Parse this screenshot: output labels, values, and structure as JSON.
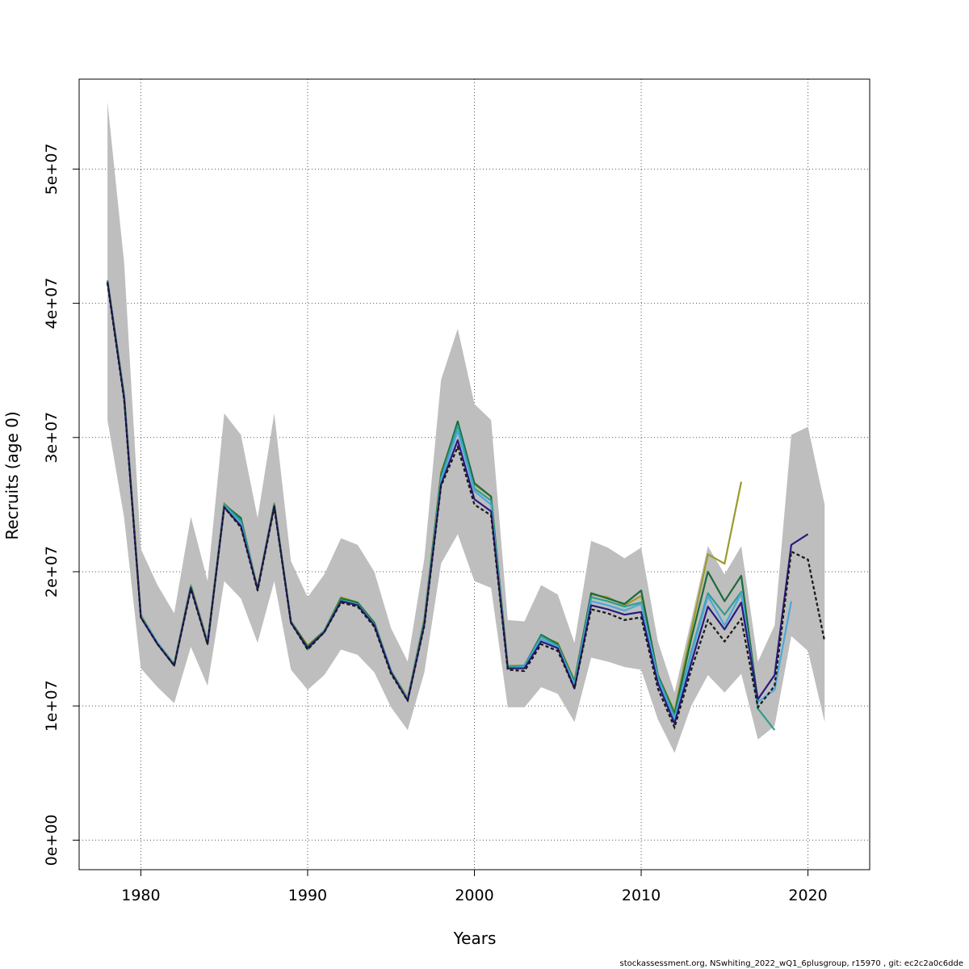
{
  "chart_data": {
    "type": "line",
    "xlabel": "Years",
    "ylabel": "Recruits (age 0)",
    "xlim": [
      1976.3,
      2023.7
    ],
    "ylim": [
      -2200000,
      56700000
    ],
    "x_ticks": [
      1980,
      1990,
      2000,
      2010,
      2020
    ],
    "x_tick_labels": [
      "1980",
      "1990",
      "2000",
      "2010",
      "2020"
    ],
    "y_ticks": [
      0,
      10000000,
      20000000,
      30000000,
      40000000,
      50000000
    ],
    "y_tick_labels": [
      "0e+00",
      "1e+07",
      "2e+07",
      "3e+07",
      "4e+07",
      "5e+07"
    ],
    "grid": true,
    "footer": "stockassessment.org, NSwhiting_2022_wQ1_6plusgroup, r15970 , git: ec2c2a0c6dde",
    "band": {
      "color": "#bebebe",
      "x": [
        1978,
        1979,
        1980,
        1981,
        1982,
        1983,
        1984,
        1985,
        1986,
        1987,
        1988,
        1989,
        1990,
        1991,
        1992,
        1993,
        1994,
        1995,
        1996,
        1997,
        1998,
        1999,
        2000,
        2001,
        2002,
        2003,
        2004,
        2005,
        2006,
        2007,
        2008,
        2009,
        2010,
        2011,
        2012,
        2013,
        2014,
        2015,
        2016,
        2017,
        2018,
        2019,
        2020,
        2021
      ],
      "upper": [
        55000000,
        43000000,
        21700000,
        19000000,
        16900000,
        24100000,
        19300000,
        31800000,
        30200000,
        24000000,
        31800000,
        20800000,
        18100000,
        19800000,
        22500000,
        22000000,
        20000000,
        15800000,
        13300000,
        21000000,
        34300000,
        38100000,
        32500000,
        31300000,
        16400000,
        16300000,
        19000000,
        18300000,
        14700000,
        22300000,
        21800000,
        21000000,
        21800000,
        14800000,
        11000000,
        16400000,
        21900000,
        19800000,
        21900000,
        13300000,
        16000000,
        30200000,
        30800000,
        25000000
      ],
      "lower": [
        31300000,
        24000000,
        12800000,
        11400000,
        10200000,
        14400000,
        11500000,
        19300000,
        18000000,
        14700000,
        19300000,
        12700000,
        11200000,
        12300000,
        14200000,
        13800000,
        12500000,
        9900000,
        8200000,
        12500000,
        20600000,
        22800000,
        19300000,
        18800000,
        9900000,
        9900000,
        11400000,
        10900000,
        8800000,
        13600000,
        13300000,
        12900000,
        12700000,
        9000000,
        6500000,
        10000000,
        12300000,
        11000000,
        12400000,
        7500000,
        8500000,
        15200000,
        14100000,
        8800000
      ]
    },
    "series": [
      {
        "color": "#1a1a1a",
        "style": "dashed",
        "x": [
          1978,
          1979,
          1980,
          1981,
          1982,
          1983,
          1984,
          1985,
          1986,
          1987,
          1988,
          1989,
          1990,
          1991,
          1992,
          1993,
          1994,
          1995,
          1996,
          1997,
          1998,
          1999,
          2000,
          2001,
          2002,
          2003,
          2004,
          2005,
          2006,
          2007,
          2008,
          2009,
          2010,
          2011,
          2012,
          2013,
          2014,
          2015,
          2016,
          2017,
          2018,
          2019,
          2020,
          2021
        ],
        "values": [
          41500000,
          32800000,
          16600000,
          14600000,
          13000000,
          18700000,
          14600000,
          24800000,
          23300000,
          18600000,
          24800000,
          16200000,
          14200000,
          15500000,
          17700000,
          17400000,
          15900000,
          12400000,
          10400000,
          16000000,
          26400000,
          29300000,
          25000000,
          24200000,
          12700000,
          12600000,
          14600000,
          14100000,
          11300000,
          17200000,
          16900000,
          16400000,
          16600000,
          11300000,
          8400000,
          12700000,
          16400000,
          14800000,
          16500000,
          9900000,
          11500000,
          21500000,
          20900000,
          14800000
        ]
      },
      {
        "color": "#2a1a7e",
        "style": "solid",
        "x": [
          1978,
          1979,
          1980,
          1981,
          1982,
          1983,
          1984,
          1985,
          1986,
          1987,
          1988,
          1989,
          1990,
          1991,
          1992,
          1993,
          1994,
          1995,
          1996,
          1997,
          1998,
          1999,
          2000,
          2001,
          2002,
          2003,
          2004,
          2005,
          2006,
          2007,
          2008,
          2009,
          2010,
          2011,
          2012,
          2013,
          2014,
          2015,
          2016,
          2017,
          2018,
          2019,
          2020
        ],
        "values": [
          41600000,
          32900000,
          16600000,
          14600000,
          13000000,
          18800000,
          14600000,
          24800000,
          23400000,
          18700000,
          24900000,
          16200000,
          14300000,
          15500000,
          17800000,
          17500000,
          16000000,
          12500000,
          10400000,
          16100000,
          26500000,
          29800000,
          25400000,
          24500000,
          12800000,
          12800000,
          14800000,
          14300000,
          11300000,
          17500000,
          17200000,
          16800000,
          17000000,
          11700000,
          8700000,
          13200000,
          17400000,
          15700000,
          17700000,
          10500000,
          12300000,
          22000000,
          22800000
        ]
      },
      {
        "color": "#4aa8dc",
        "style": "solid",
        "x": [
          1978,
          1979,
          1980,
          1981,
          1982,
          1983,
          1984,
          1985,
          1986,
          1987,
          1988,
          1989,
          1990,
          1991,
          1992,
          1993,
          1994,
          1995,
          1996,
          1997,
          1998,
          1999,
          2000,
          2001,
          2002,
          2003,
          2004,
          2005,
          2006,
          2007,
          2008,
          2009,
          2010,
          2011,
          2012,
          2013,
          2014,
          2015,
          2016,
          2017,
          2018,
          2019
        ],
        "values": [
          41600000,
          33000000,
          16700000,
          14700000,
          13000000,
          18800000,
          14700000,
          24900000,
          23600000,
          18700000,
          24900000,
          16200000,
          14300000,
          15500000,
          17800000,
          17500000,
          16000000,
          12500000,
          10500000,
          16200000,
          26800000,
          30500000,
          26000000,
          25000000,
          12800000,
          12900000,
          15000000,
          14400000,
          11600000,
          17800000,
          17500000,
          17100000,
          17600000,
          12000000,
          9000000,
          13800000,
          18200000,
          16000000,
          18400000,
          10300000,
          11200000,
          17800000
        ]
      },
      {
        "color": "#2e9e8e",
        "style": "solid",
        "x": [
          1978,
          1979,
          1980,
          1981,
          1982,
          1983,
          1984,
          1985,
          1986,
          1987,
          1988,
          1989,
          1990,
          1991,
          1992,
          1993,
          1994,
          1995,
          1996,
          1997,
          1998,
          1999,
          2000,
          2001,
          2002,
          2003,
          2004,
          2005,
          2006,
          2007,
          2008,
          2009,
          2010,
          2011,
          2012,
          2013,
          2014,
          2015,
          2016,
          2017,
          2018
        ],
        "values": [
          41700000,
          33100000,
          16700000,
          14700000,
          13100000,
          18900000,
          14700000,
          25000000,
          23800000,
          18700000,
          25000000,
          16300000,
          14200000,
          15600000,
          17900000,
          17600000,
          16100000,
          12600000,
          10500000,
          16300000,
          27000000,
          30900000,
          26200000,
          25300000,
          12900000,
          13000000,
          15200000,
          14500000,
          11700000,
          18100000,
          17800000,
          17400000,
          17700000,
          12200000,
          9200000,
          14000000,
          18400000,
          16800000,
          18500000,
          9800000,
          8200000
        ]
      },
      {
        "color": "#1a6b3a",
        "style": "solid",
        "x": [
          1978,
          1979,
          1980,
          1981,
          1982,
          1983,
          1984,
          1985,
          1986,
          1987,
          1988,
          1989,
          1990,
          1991,
          1992,
          1993,
          1994,
          1995,
          1996,
          1997,
          1998,
          1999,
          2000,
          2001,
          2002,
          2003,
          2004,
          2005,
          2006,
          2007,
          2008,
          2009,
          2010,
          2011,
          2012,
          2013,
          2014,
          2015,
          2016,
          2017
        ],
        "values": [
          41700000,
          33100000,
          16700000,
          14700000,
          13100000,
          18900000,
          14700000,
          25000000,
          24000000,
          18700000,
          25000000,
          16300000,
          14400000,
          15600000,
          18000000,
          17700000,
          16200000,
          12600000,
          10500000,
          16400000,
          27200000,
          31200000,
          26600000,
          25600000,
          12900000,
          13000000,
          15300000,
          14600000,
          11800000,
          18400000,
          18000000,
          17600000,
          18600000,
          12300000,
          9400000,
          15000000,
          20000000,
          17800000,
          19700000,
          10300000
        ]
      },
      {
        "color": "#9a9a2e",
        "style": "solid",
        "x": [
          1978,
          1979,
          1980,
          1981,
          1982,
          1983,
          1984,
          1985,
          1986,
          1987,
          1988,
          1989,
          1990,
          1991,
          1992,
          1993,
          1994,
          1995,
          1996,
          1997,
          1998,
          1999,
          2000,
          2001,
          2002,
          2003,
          2004,
          2005,
          2006,
          2007,
          2008,
          2009,
          2010,
          2011,
          2012,
          2013,
          2014,
          2015,
          2016
        ],
        "values": [
          41700000,
          33200000,
          16800000,
          14700000,
          13100000,
          19000000,
          14800000,
          25100000,
          23800000,
          18800000,
          25100000,
          16300000,
          14500000,
          15600000,
          18100000,
          17700000,
          16200000,
          12600000,
          10600000,
          16500000,
          27400000,
          31000000,
          26500000,
          25600000,
          13000000,
          13000000,
          15200000,
          14700000,
          11900000,
          18300000,
          18100000,
          17500000,
          18200000,
          12300000,
          9600000,
          15600000,
          21300000,
          20600000,
          26700000
        ]
      }
    ]
  }
}
